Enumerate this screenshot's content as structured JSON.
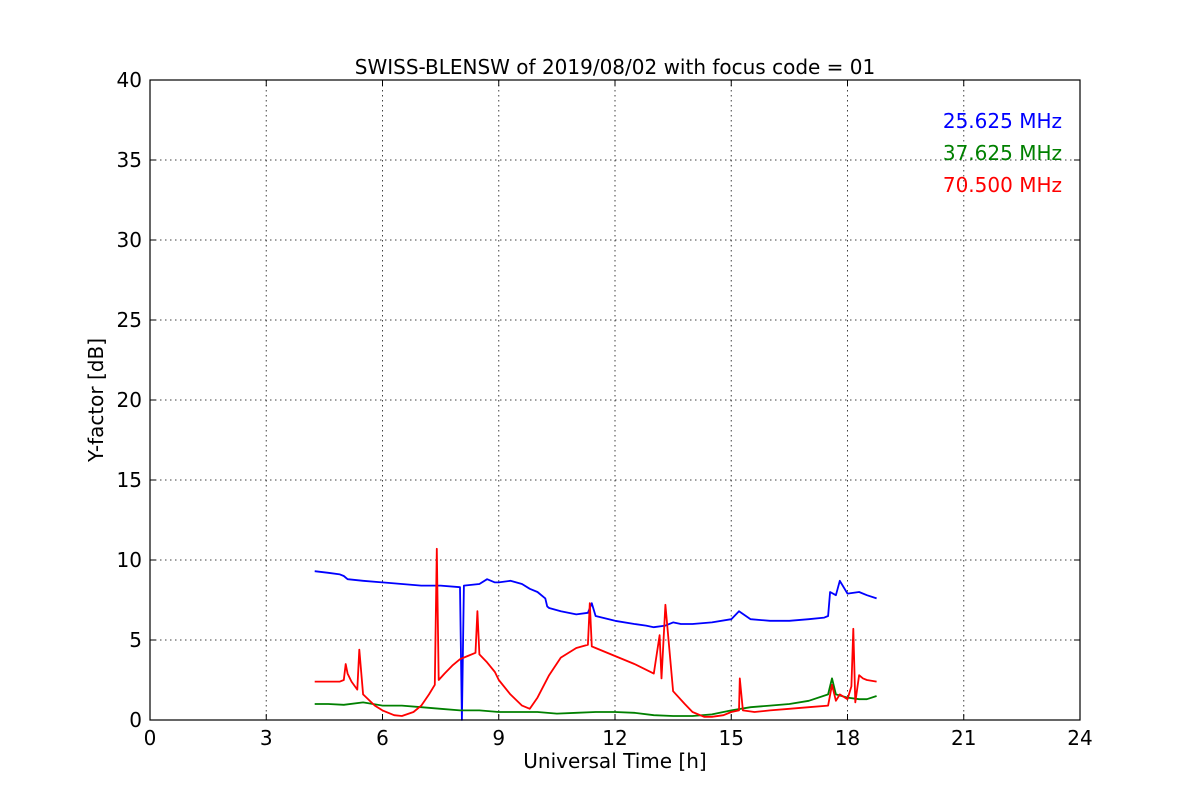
{
  "chart_data": {
    "type": "line",
    "title": "SWISS-BLENSW of 2019/08/02 with focus code = 01",
    "xlabel": "Universal Time [h]",
    "ylabel": "Y-factor [dB]",
    "xlim": [
      0,
      24
    ],
    "ylim": [
      0,
      40
    ],
    "xticks": [
      0,
      3,
      6,
      9,
      12,
      15,
      18,
      21,
      24
    ],
    "yticks": [
      0,
      5,
      10,
      15,
      20,
      25,
      30,
      35,
      40
    ],
    "grid": true,
    "legend": "top-right",
    "series": [
      {
        "name": "25.625 MHz",
        "color": "#0000ff",
        "x": [
          4.25,
          4.6,
          4.9,
          5.0,
          5.1,
          5.5,
          6.0,
          6.5,
          7.0,
          7.5,
          8.0,
          8.05,
          8.1,
          8.5,
          8.7,
          8.9,
          9.0,
          9.3,
          9.6,
          9.8,
          10.0,
          10.2,
          10.25,
          10.3,
          10.6,
          11.0,
          11.3,
          11.4,
          11.5,
          12.0,
          12.5,
          12.8,
          13.0,
          13.3,
          13.5,
          13.7,
          14.0,
          14.5,
          15.0,
          15.2,
          15.5,
          16.0,
          16.5,
          17.0,
          17.4,
          17.5,
          17.55,
          17.7,
          17.8,
          18.0,
          18.3,
          18.5,
          18.75
        ],
        "y": [
          9.3,
          9.2,
          9.1,
          9.0,
          8.8,
          8.7,
          8.6,
          8.5,
          8.4,
          8.4,
          8.3,
          0.0,
          8.4,
          8.5,
          8.8,
          8.6,
          8.6,
          8.7,
          8.5,
          8.2,
          8.0,
          7.6,
          7.1,
          7.0,
          6.8,
          6.6,
          6.7,
          7.3,
          6.5,
          6.2,
          6.0,
          5.9,
          5.8,
          5.9,
          6.1,
          6.0,
          6.0,
          6.1,
          6.3,
          6.8,
          6.3,
          6.2,
          6.2,
          6.3,
          6.4,
          6.5,
          8.0,
          7.8,
          8.7,
          7.9,
          8.0,
          7.8,
          7.6
        ]
      },
      {
        "name": "37.625 MHz",
        "color": "#008000",
        "x": [
          4.25,
          4.6,
          5.0,
          5.5,
          6.0,
          6.5,
          7.0,
          7.5,
          8.0,
          8.5,
          9.0,
          9.5,
          10.0,
          10.5,
          11.0,
          11.5,
          12.0,
          12.5,
          13.0,
          13.5,
          14.0,
          14.5,
          15.0,
          15.5,
          16.0,
          16.5,
          17.0,
          17.5,
          17.6,
          17.7,
          18.0,
          18.3,
          18.5,
          18.75
        ],
        "y": [
          1.0,
          1.0,
          0.95,
          1.1,
          0.9,
          0.9,
          0.8,
          0.7,
          0.6,
          0.6,
          0.5,
          0.5,
          0.5,
          0.4,
          0.45,
          0.5,
          0.5,
          0.45,
          0.3,
          0.25,
          0.25,
          0.35,
          0.6,
          0.8,
          0.9,
          1.0,
          1.2,
          1.6,
          2.6,
          1.6,
          1.4,
          1.3,
          1.3,
          1.5
        ]
      },
      {
        "name": "70.500 MHz",
        "color": "#ff0000",
        "x": [
          4.25,
          4.6,
          4.9,
          5.0,
          5.05,
          5.1,
          5.2,
          5.35,
          5.4,
          5.5,
          5.8,
          6.0,
          6.3,
          6.5,
          6.8,
          7.0,
          7.2,
          7.35,
          7.4,
          7.45,
          7.6,
          7.8,
          8.0,
          8.2,
          8.4,
          8.45,
          8.5,
          8.7,
          8.9,
          9.0,
          9.3,
          9.6,
          9.8,
          10.0,
          10.3,
          10.6,
          11.0,
          11.3,
          11.35,
          11.4,
          11.5,
          12.0,
          12.5,
          13.0,
          13.15,
          13.2,
          13.3,
          13.5,
          13.8,
          14.0,
          14.3,
          14.5,
          14.8,
          15.0,
          15.2,
          15.22,
          15.3,
          15.6,
          16.0,
          16.5,
          17.0,
          17.5,
          17.6,
          17.7,
          17.8,
          18.0,
          18.1,
          18.15,
          18.2,
          18.3,
          18.4,
          18.5,
          18.75
        ],
        "y": [
          2.4,
          2.4,
          2.4,
          2.5,
          3.5,
          2.9,
          2.4,
          1.9,
          4.4,
          1.6,
          0.9,
          0.6,
          0.3,
          0.25,
          0.5,
          0.9,
          1.6,
          2.2,
          10.7,
          2.5,
          2.9,
          3.4,
          3.8,
          4.0,
          4.2,
          6.8,
          4.1,
          3.6,
          3.0,
          2.5,
          1.6,
          0.9,
          0.7,
          1.4,
          2.8,
          3.9,
          4.5,
          4.7,
          7.3,
          4.6,
          4.5,
          4.0,
          3.5,
          2.9,
          5.3,
          2.6,
          7.2,
          1.8,
          1.0,
          0.5,
          0.2,
          0.2,
          0.3,
          0.5,
          0.6,
          2.6,
          0.6,
          0.5,
          0.6,
          0.7,
          0.8,
          0.9,
          2.2,
          1.2,
          1.6,
          1.3,
          2.1,
          5.7,
          1.1,
          2.8,
          2.6,
          2.5,
          2.4
        ]
      }
    ]
  }
}
